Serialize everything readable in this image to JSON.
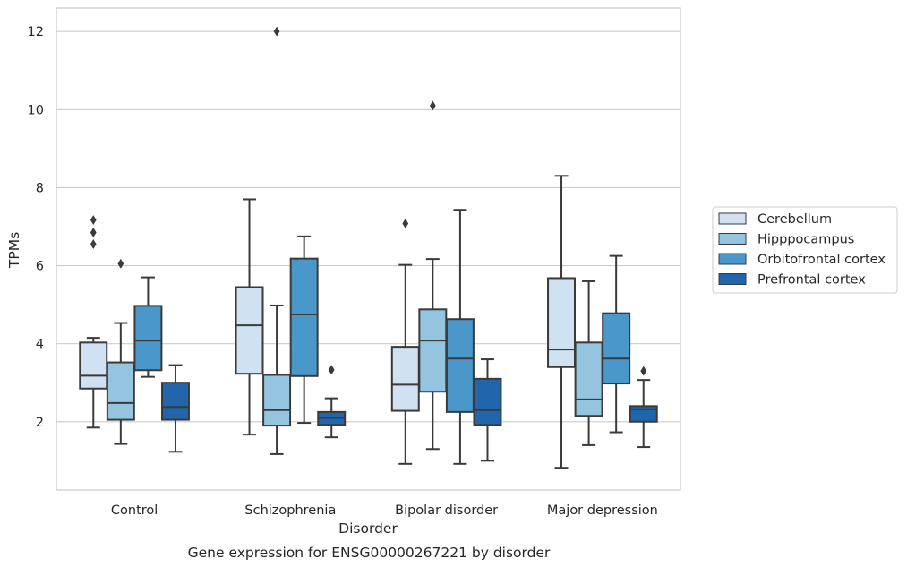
{
  "chart_data": {
    "type": "box",
    "xlabel": "Disorder",
    "ylabel": "TPMs",
    "caption": "Gene expression for ENSG00000267221 by disorder",
    "ylim": [
      0.25,
      12.6
    ],
    "yticks": [
      2,
      4,
      6,
      8,
      10,
      12
    ],
    "grid": "horizontal",
    "legend_placement": "right",
    "categories": [
      "Control",
      "Schizophrenia",
      "Bipolar disorder",
      "Major depression"
    ],
    "series": [
      {
        "name": "Cerebellum",
        "color": "#d0e1f2",
        "boxes": [
          {
            "whislo": 1.85,
            "q1": 2.85,
            "med": 3.18,
            "q3": 4.03,
            "whishi": 4.15,
            "fliers": [
              6.55,
              6.85,
              7.17
            ]
          },
          {
            "whislo": 1.67,
            "q1": 3.23,
            "med": 4.47,
            "q3": 5.45,
            "whishi": 7.7,
            "fliers": []
          },
          {
            "whislo": 0.92,
            "q1": 2.28,
            "med": 2.95,
            "q3": 3.92,
            "whishi": 6.02,
            "fliers": [
              7.08
            ]
          },
          {
            "whislo": 0.82,
            "q1": 3.4,
            "med": 3.85,
            "q3": 5.68,
            "whishi": 8.3,
            "fliers": []
          }
        ]
      },
      {
        "name": "Hipppocampus",
        "color": "#94c4df",
        "boxes": [
          {
            "whislo": 1.43,
            "q1": 2.05,
            "med": 2.48,
            "q3": 3.52,
            "whishi": 4.53,
            "fliers": [
              6.05
            ]
          },
          {
            "whislo": 1.17,
            "q1": 1.9,
            "med": 2.3,
            "q3": 3.2,
            "whishi": 4.98,
            "fliers": [
              12.0
            ]
          },
          {
            "whislo": 1.3,
            "q1": 2.77,
            "med": 4.08,
            "q3": 4.88,
            "whishi": 6.17,
            "fliers": [
              10.1
            ]
          },
          {
            "whislo": 1.4,
            "q1": 2.15,
            "med": 2.57,
            "q3": 4.03,
            "whishi": 5.6,
            "fliers": []
          }
        ]
      },
      {
        "name": "Orbitofrontal cortex",
        "color": "#4a98c9",
        "boxes": [
          {
            "whislo": 3.15,
            "q1": 3.32,
            "med": 4.08,
            "q3": 4.97,
            "whishi": 5.7,
            "fliers": []
          },
          {
            "whislo": 1.97,
            "q1": 3.17,
            "med": 4.75,
            "q3": 6.18,
            "whishi": 6.75,
            "fliers": []
          },
          {
            "whislo": 0.92,
            "q1": 2.25,
            "med": 3.62,
            "q3": 4.63,
            "whishi": 7.43,
            "fliers": []
          },
          {
            "whislo": 1.73,
            "q1": 2.98,
            "med": 3.62,
            "q3": 4.78,
            "whishi": 6.25,
            "fliers": []
          }
        ]
      },
      {
        "name": "Prefrontal cortex",
        "color": "#2166ac",
        "boxes": [
          {
            "whislo": 1.23,
            "q1": 2.05,
            "med": 2.38,
            "q3": 3.0,
            "whishi": 3.45,
            "fliers": []
          },
          {
            "whislo": 1.6,
            "q1": 1.92,
            "med": 2.1,
            "q3": 2.25,
            "whishi": 2.6,
            "fliers": [
              3.33
            ]
          },
          {
            "whislo": 1.0,
            "q1": 1.92,
            "med": 2.3,
            "q3": 3.1,
            "whishi": 3.6,
            "fliers": []
          },
          {
            "whislo": 1.35,
            "q1": 2.0,
            "med": 2.32,
            "q3": 2.4,
            "whishi": 3.07,
            "fliers": [
              3.3
            ]
          }
        ]
      }
    ]
  }
}
